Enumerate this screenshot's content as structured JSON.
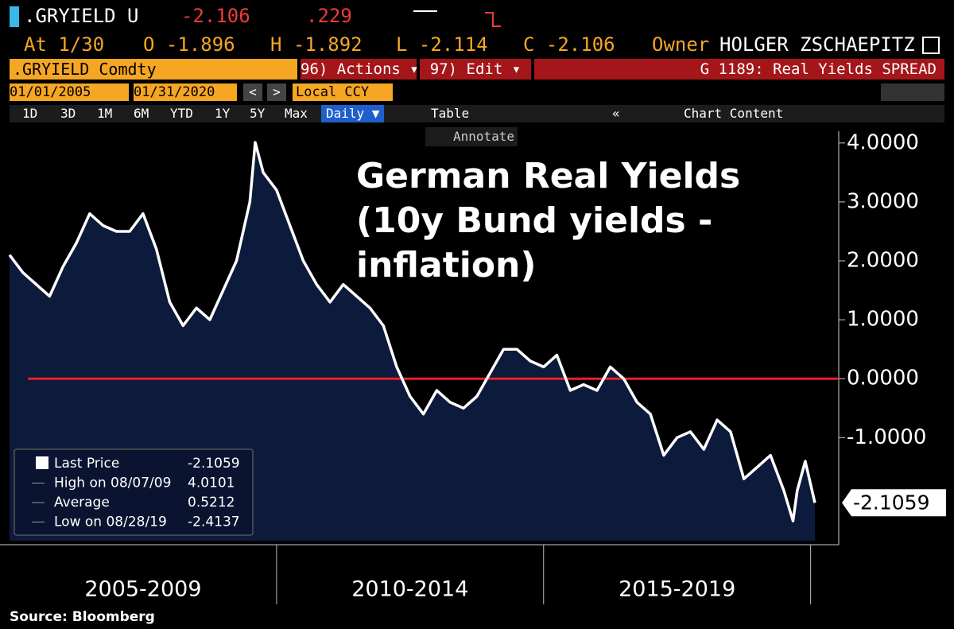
{
  "terminal": {
    "row1": {
      "ticker": ".GRYIELD U",
      "last": "-2.106",
      "change": ".229"
    },
    "row2": {
      "at": "At 1/30",
      "open": "O -1.896",
      "high": "H -1.892",
      "low": "L -2.114",
      "close": "C -2.106",
      "owner_label": "Owner",
      "owner": "HOLGER ZSCHAEPITZ"
    },
    "row3": {
      "security": ".GRYIELD Comdty",
      "actions": "96) Actions ▾",
      "edit": "97) Edit ▾",
      "page": "G 1189: Real Yields SPREAD"
    },
    "row4": {
      "start": "01/01/2005",
      "end": "01/31/2020",
      "currency": "Local CCY"
    },
    "buttons": [
      "1D",
      "3D",
      "1M",
      "6M",
      "YTD",
      "1Y",
      "5Y",
      "Max",
      "Daily ▼"
    ],
    "table": "Table",
    "chart_content": "Chart Content",
    "annotate": "Annotate",
    "source": "Source: Bloomberg"
  },
  "chart_data": {
    "type": "line",
    "title_lines": [
      "German Real Yields",
      "(10y Bund yields -",
      "inflation)"
    ],
    "x": [
      2005.0,
      2005.25,
      2005.5,
      2005.75,
      2006.0,
      2006.25,
      2006.5,
      2006.75,
      2007.0,
      2007.25,
      2007.5,
      2007.75,
      2008.0,
      2008.25,
      2008.5,
      2008.75,
      2009.0,
      2009.25,
      2009.5,
      2009.6,
      2009.75,
      2010.0,
      2010.25,
      2010.5,
      2010.75,
      2011.0,
      2011.25,
      2011.5,
      2011.75,
      2012.0,
      2012.25,
      2012.5,
      2012.75,
      2013.0,
      2013.25,
      2013.5,
      2013.75,
      2014.0,
      2014.25,
      2014.5,
      2014.75,
      2015.0,
      2015.25,
      2015.5,
      2015.75,
      2016.0,
      2016.25,
      2016.5,
      2016.75,
      2017.0,
      2017.25,
      2017.5,
      2017.75,
      2018.0,
      2018.25,
      2018.5,
      2018.75,
      2019.0,
      2019.25,
      2019.5,
      2019.67,
      2019.75,
      2019.9,
      2020.08
    ],
    "series": [
      {
        "name": "Last Price",
        "color": "#ffffff",
        "values": [
          2.1,
          1.8,
          1.6,
          1.4,
          1.9,
          2.3,
          2.8,
          2.6,
          2.5,
          2.5,
          2.8,
          2.2,
          1.3,
          0.9,
          1.2,
          1.0,
          1.5,
          2.0,
          3.0,
          4.0101,
          3.5,
          3.2,
          2.6,
          2.0,
          1.6,
          1.3,
          1.6,
          1.4,
          1.2,
          0.9,
          0.2,
          -0.3,
          -0.6,
          -0.2,
          -0.4,
          -0.5,
          -0.3,
          0.1,
          0.5,
          0.5,
          0.3,
          0.2,
          0.4,
          -0.2,
          -0.1,
          -0.2,
          0.2,
          0.0,
          -0.4,
          -0.6,
          -1.3,
          -1.0,
          -0.9,
          -1.2,
          -0.7,
          -0.9,
          -1.7,
          -1.5,
          -1.3,
          -1.9,
          -2.4137,
          -1.9,
          -1.4,
          -2.1059
        ]
      }
    ],
    "area_color": "#0c1a3c",
    "xlim": [
      2005.0,
      2020.08
    ],
    "xticks": [
      {
        "value": 2007.5,
        "label": "2005-2009"
      },
      {
        "value": 2012.5,
        "label": "2010-2014"
      },
      {
        "value": 2017.5,
        "label": "2015-2019"
      }
    ],
    "x_separators": [
      2010,
      2015,
      2020
    ],
    "ylim": [
      -2.75,
      4.2
    ],
    "yticks": [
      {
        "value": 4,
        "label": "4.0000"
      },
      {
        "value": 3,
        "label": "3.0000"
      },
      {
        "value": 2,
        "label": "2.0000"
      },
      {
        "value": 1,
        "label": "1.0000"
      },
      {
        "value": 0,
        "label": "0.0000"
      },
      {
        "value": -1,
        "label": "-1.0000"
      }
    ],
    "reference_line": {
      "value": 0,
      "color": "#e8202a"
    },
    "last_label": "-2.1059",
    "stats": [
      {
        "label": "Last Price",
        "value": "-2.1059"
      },
      {
        "label": "High on 08/07/09",
        "value": "4.0101"
      },
      {
        "label": "Average",
        "value": "0.5212"
      },
      {
        "label": "Low on 08/28/19",
        "value": "-2.4137"
      }
    ]
  }
}
